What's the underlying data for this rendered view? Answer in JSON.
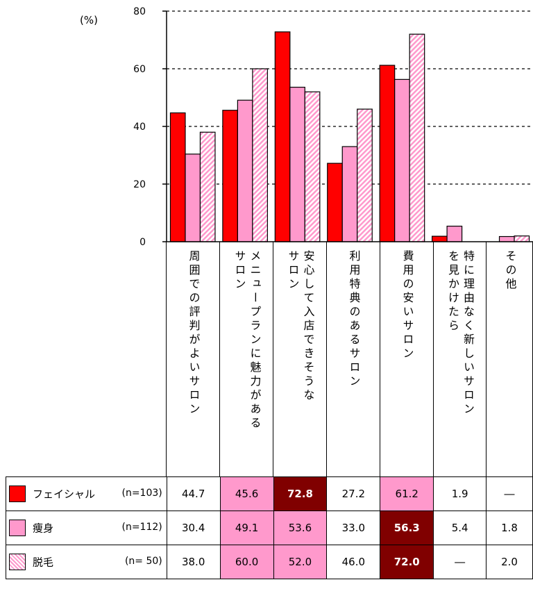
{
  "chart_data": {
    "type": "bar",
    "unit_label": "(%)",
    "ylim": [
      0,
      80
    ],
    "yticks": [
      0,
      20,
      40,
      60,
      80
    ],
    "grid": true,
    "categories": [
      "周囲での評判がよいサロン",
      "メニュープランに魅力があるサロン",
      "安心して入店できそうなサロン",
      "利用特典のあるサロン",
      "費用の安いサロン",
      "特に理由なく新しいサロンを見かけたら",
      "その他"
    ],
    "category_lines": [
      [
        "周囲での評判がよいサロン"
      ],
      [
        "メニュープランに魅力がある",
        "サロン"
      ],
      [
        "安心して入店できそうな",
        "サロン"
      ],
      [
        "利用特典のあるサロン"
      ],
      [
        "費用の安いサロン"
      ],
      [
        "特に理由なく新しいサロン",
        "を見かけたら"
      ],
      [
        "その他"
      ]
    ],
    "series": [
      {
        "name": "フェイシャル",
        "n": "(n=103)",
        "color": "#ff0000",
        "pattern": "solid",
        "values": [
          44.7,
          45.6,
          72.8,
          27.2,
          61.2,
          1.9,
          null
        ],
        "labels": [
          "44.7",
          "45.6",
          "72.8",
          "27.2",
          "61.2",
          "1.9",
          "―"
        ],
        "highlight": [
          "none",
          "pink",
          "dark",
          "none",
          "pink",
          "none",
          "none"
        ]
      },
      {
        "name": "痩身",
        "n": "(n=112)",
        "color": "#ff99cc",
        "pattern": "solid",
        "values": [
          30.4,
          49.1,
          53.6,
          33.0,
          56.3,
          5.4,
          1.8
        ],
        "labels": [
          "30.4",
          "49.1",
          "53.6",
          "33.0",
          "56.3",
          "5.4",
          "1.8"
        ],
        "highlight": [
          "none",
          "pink",
          "pink",
          "none",
          "dark",
          "none",
          "none"
        ]
      },
      {
        "name": "脱毛",
        "n": "(n= 50)",
        "color": "#ff99cc",
        "pattern": "hatched",
        "values": [
          38.0,
          60.0,
          52.0,
          46.0,
          72.0,
          null,
          2.0
        ],
        "labels": [
          "38.0",
          "60.0",
          "52.0",
          "46.0",
          "72.0",
          "―",
          "2.0"
        ],
        "highlight": [
          "none",
          "pink",
          "pink",
          "none",
          "dark",
          "none",
          "none"
        ]
      }
    ]
  }
}
